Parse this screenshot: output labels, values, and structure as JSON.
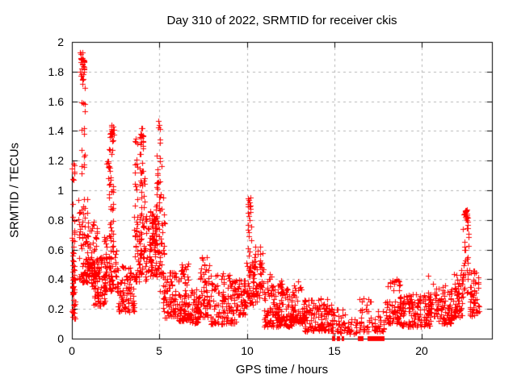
{
  "chart_data": {
    "type": "scatter",
    "title": "Day 310 of 2022, SRMTID for receiver ckis",
    "xlabel": "GPS time / hours",
    "ylabel": "SRMTID / TECUs",
    "series_name": "SRMTID",
    "xlim": [
      0,
      24
    ],
    "ylim": [
      0,
      2
    ],
    "xticks": [
      0,
      5,
      10,
      15,
      20
    ],
    "yticks": [
      0,
      0.2,
      0.4,
      0.6,
      0.8,
      1,
      1.2,
      1.4,
      1.6,
      1.8,
      2
    ],
    "ytick_labels": [
      "0",
      "0.2",
      "0.4",
      "0.6",
      "0.8",
      "1",
      "1.2",
      "1.4",
      "1.6",
      "1.8",
      "2"
    ],
    "grid": {
      "on": true,
      "style": "dashed",
      "x_at": [
        5,
        10,
        15,
        20
      ],
      "y_at": [
        0.2,
        0.4,
        0.6,
        0.8,
        1,
        1.2,
        1.4,
        1.6,
        1.8
      ]
    },
    "legend": "none",
    "marker": {
      "shape": "plus",
      "size": 7
    },
    "style": {
      "marker_color": "#ff0000",
      "grid_color": "#b4b4b4",
      "border_color": "#000000",
      "text_color": "#000000",
      "background": "#ffffff"
    },
    "prng_seed": 310,
    "spike_maxima": [
      {
        "x": 0.58,
        "y": 1.93
      },
      {
        "x": 2.25,
        "y": 1.44
      },
      {
        "x": 3.95,
        "y": 1.42
      },
      {
        "x": 4.95,
        "y": 1.47
      },
      {
        "x": 10.18,
        "y": 0.95
      },
      {
        "x": 22.55,
        "y": 0.87
      }
    ],
    "zero_value_segments": [
      [
        14.85,
        15.05
      ],
      [
        15.15,
        15.3
      ],
      [
        15.4,
        15.55
      ],
      [
        16.35,
        16.65
      ],
      [
        16.9,
        17.85
      ]
    ],
    "clusters": [
      {
        "x0": 0.02,
        "x1": 0.18,
        "y0": 0.13,
        "y1": 0.52,
        "n": 40,
        "bias": 1.0
      },
      {
        "x0": 0.02,
        "x1": 0.15,
        "y0": 0.52,
        "y1": 1.22,
        "n": 22,
        "bias": 1.2
      },
      {
        "x0": 0.45,
        "x1": 0.72,
        "y0": 1.72,
        "y1": 1.93,
        "n": 30,
        "bias": 0.8
      },
      {
        "x0": 0.5,
        "x1": 0.75,
        "y0": 0.95,
        "y1": 1.72,
        "n": 16,
        "bias": 1.0
      },
      {
        "x0": 0.35,
        "x1": 0.95,
        "y0": 0.38,
        "y1": 0.95,
        "n": 70,
        "bias": 1.4
      },
      {
        "x0": 0.85,
        "x1": 1.45,
        "y0": 0.42,
        "y1": 0.8,
        "n": 60,
        "bias": 1.6
      },
      {
        "x0": 1.1,
        "x1": 1.9,
        "y0": 0.22,
        "y1": 0.55,
        "n": 90,
        "bias": 1.3
      },
      {
        "x0": 1.8,
        "x1": 2.6,
        "y0": 0.32,
        "y1": 0.7,
        "n": 80,
        "bias": 1.3
      },
      {
        "x0": 2.1,
        "x1": 2.4,
        "y0": 0.7,
        "y1": 1.32,
        "n": 30,
        "bias": 1.0
      },
      {
        "x0": 2.15,
        "x1": 2.4,
        "y0": 1.32,
        "y1": 1.44,
        "n": 16,
        "bias": 0.8
      },
      {
        "x0": 2.0,
        "x1": 2.12,
        "y0": 1.08,
        "y1": 1.26,
        "n": 7,
        "bias": 1.0
      },
      {
        "x0": 2.6,
        "x1": 3.55,
        "y0": 0.18,
        "y1": 0.5,
        "n": 85,
        "bias": 1.4
      },
      {
        "x0": 3.55,
        "x1": 4.3,
        "y0": 0.38,
        "y1": 0.85,
        "n": 85,
        "bias": 1.4
      },
      {
        "x0": 3.6,
        "x1": 3.75,
        "y0": 0.85,
        "y1": 1.35,
        "n": 14,
        "bias": 1.0
      },
      {
        "x0": 3.85,
        "x1": 4.15,
        "y0": 0.85,
        "y1": 1.3,
        "n": 22,
        "bias": 1.0
      },
      {
        "x0": 3.88,
        "x1": 4.12,
        "y0": 1.3,
        "y1": 1.42,
        "n": 14,
        "bias": 0.8
      },
      {
        "x0": 4.35,
        "x1": 5.2,
        "y0": 0.42,
        "y1": 0.9,
        "n": 90,
        "bias": 1.5
      },
      {
        "x0": 4.55,
        "x1": 4.8,
        "y0": 0.62,
        "y1": 0.85,
        "n": 25,
        "bias": 1.0
      },
      {
        "x0": 4.85,
        "x1": 5.05,
        "y0": 0.9,
        "y1": 1.47,
        "n": 22,
        "bias": 1.1
      },
      {
        "x0": 5.05,
        "x1": 5.35,
        "y0": 0.3,
        "y1": 1.2,
        "n": 18,
        "bias": 2.2
      },
      {
        "x0": 5.2,
        "x1": 5.95,
        "y0": 0.14,
        "y1": 0.45,
        "n": 70,
        "bias": 1.4
      },
      {
        "x0": 5.95,
        "x1": 6.7,
        "y0": 0.12,
        "y1": 0.52,
        "n": 80,
        "bias": 1.5
      },
      {
        "x0": 6.7,
        "x1": 7.3,
        "y0": 0.1,
        "y1": 0.34,
        "n": 60,
        "bias": 1.3
      },
      {
        "x0": 7.3,
        "x1": 7.95,
        "y0": 0.14,
        "y1": 0.56,
        "n": 65,
        "bias": 1.5
      },
      {
        "x0": 7.95,
        "x1": 9.35,
        "y0": 0.1,
        "y1": 0.44,
        "n": 120,
        "bias": 1.6
      },
      {
        "x0": 9.35,
        "x1": 9.95,
        "y0": 0.16,
        "y1": 0.4,
        "n": 55,
        "bias": 1.3
      },
      {
        "x0": 9.95,
        "x1": 10.45,
        "y0": 0.22,
        "y1": 0.55,
        "n": 55,
        "bias": 1.3
      },
      {
        "x0": 10.05,
        "x1": 10.3,
        "y0": 0.55,
        "y1": 0.95,
        "n": 22,
        "bias": 1.0
      },
      {
        "x0": 10.45,
        "x1": 10.95,
        "y0": 0.25,
        "y1": 0.62,
        "n": 45,
        "bias": 1.4
      },
      {
        "x0": 10.95,
        "x1": 12.6,
        "y0": 0.08,
        "y1": 0.36,
        "n": 150,
        "bias": 1.5
      },
      {
        "x0": 11.15,
        "x1": 11.45,
        "y0": 0.3,
        "y1": 0.45,
        "n": 10,
        "bias": 1.0
      },
      {
        "x0": 11.85,
        "x1": 12.15,
        "y0": 0.3,
        "y1": 0.43,
        "n": 9,
        "bias": 1.0
      },
      {
        "x0": 12.6,
        "x1": 13.2,
        "y0": 0.1,
        "y1": 0.42,
        "n": 55,
        "bias": 1.6
      },
      {
        "x0": 13.2,
        "x1": 14.85,
        "y0": 0.05,
        "y1": 0.27,
        "n": 130,
        "bias": 1.4
      },
      {
        "x0": 14.85,
        "x1": 15.6,
        "y0": 0.04,
        "y1": 0.2,
        "n": 40,
        "bias": 1.4
      },
      {
        "x0": 15.6,
        "x1": 16.35,
        "y0": 0.03,
        "y1": 0.13,
        "n": 22,
        "bias": 1.2
      },
      {
        "x0": 16.4,
        "x1": 17.1,
        "y0": 0.05,
        "y1": 0.27,
        "n": 32,
        "bias": 1.5
      },
      {
        "x0": 17.1,
        "x1": 17.9,
        "y0": 0.05,
        "y1": 0.2,
        "n": 28,
        "bias": 1.4
      },
      {
        "x0": 17.9,
        "x1": 18.75,
        "y0": 0.1,
        "y1": 0.42,
        "n": 70,
        "bias": 1.6
      },
      {
        "x0": 18.75,
        "x1": 20.55,
        "y0": 0.08,
        "y1": 0.3,
        "n": 150,
        "bias": 1.4
      },
      {
        "x0": 20.3,
        "x1": 20.9,
        "y0": 0.15,
        "y1": 0.44,
        "n": 30,
        "bias": 1.5
      },
      {
        "x0": 20.9,
        "x1": 21.7,
        "y0": 0.1,
        "y1": 0.36,
        "n": 70,
        "bias": 1.4
      },
      {
        "x0": 21.7,
        "x1": 22.35,
        "y0": 0.14,
        "y1": 0.46,
        "n": 60,
        "bias": 1.4
      },
      {
        "x0": 22.35,
        "x1": 22.7,
        "y0": 0.3,
        "y1": 0.76,
        "n": 26,
        "bias": 1.1
      },
      {
        "x0": 22.4,
        "x1": 22.65,
        "y0": 0.76,
        "y1": 0.87,
        "n": 18,
        "bias": 0.8
      },
      {
        "x0": 22.7,
        "x1": 23.25,
        "y0": 0.15,
        "y1": 0.46,
        "n": 55,
        "bias": 1.4
      }
    ]
  }
}
